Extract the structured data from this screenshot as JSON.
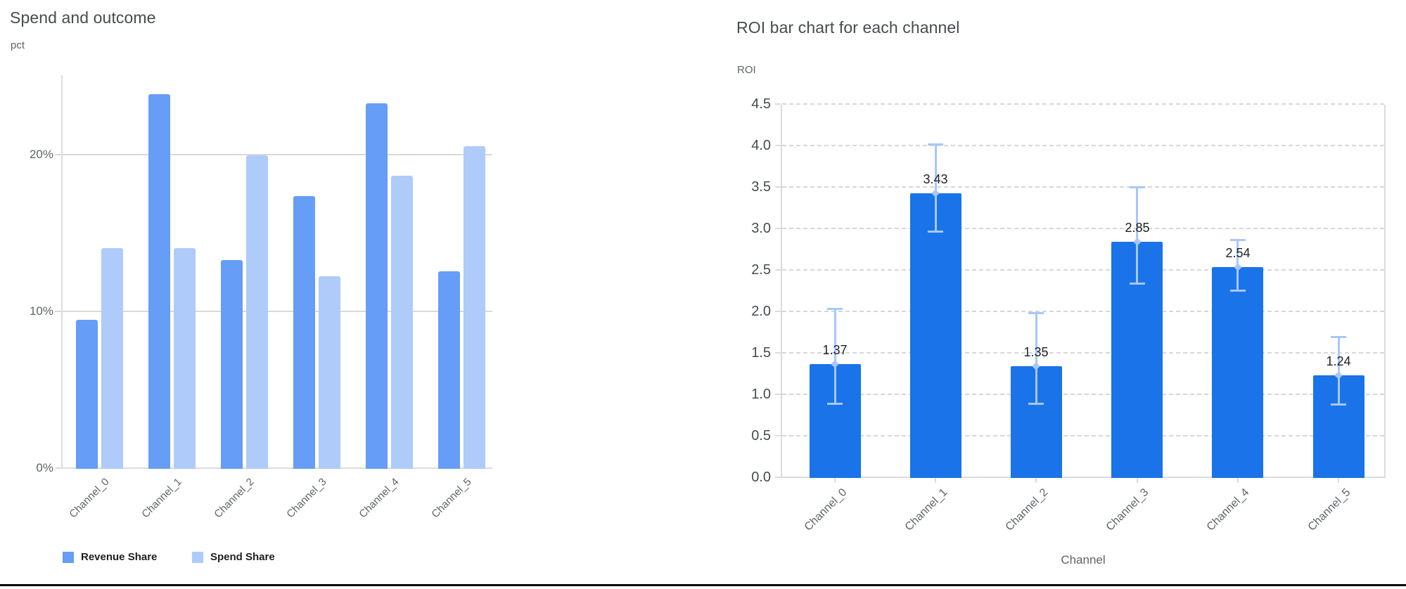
{
  "chart_data": [
    {
      "type": "bar",
      "variant": "grouped",
      "title": "Spend and outcome",
      "ylabel": "pct",
      "xlabel": "",
      "categories": [
        "Channel_0",
        "Channel_1",
        "Channel_2",
        "Channel_3",
        "Channel_4",
        "Channel_5"
      ],
      "series": [
        {
          "name": "Revenue Share",
          "color": "#669df6",
          "values": [
            9.5,
            23.9,
            13.3,
            17.4,
            23.3,
            12.6
          ]
        },
        {
          "name": "Spend Share",
          "color": "#aecbfa",
          "values": [
            14.1,
            14.1,
            20.0,
            12.3,
            18.7,
            20.6
          ]
        }
      ],
      "y_ticks": [
        {
          "label": "0%",
          "value": 0
        },
        {
          "label": "10%",
          "value": 10
        },
        {
          "label": "20%",
          "value": 20
        }
      ],
      "ylim": [
        0,
        25.1
      ],
      "grid": "solid",
      "legend_position": "bottom"
    },
    {
      "type": "bar",
      "variant": "single-with-error-bars",
      "title": "ROI bar chart for each channel",
      "ylabel": "ROI",
      "xlabel": "Channel",
      "categories": [
        "Channel_0",
        "Channel_1",
        "Channel_2",
        "Channel_3",
        "Channel_4",
        "Channel_5"
      ],
      "series": [
        {
          "name": "ROI",
          "color": "#1a73e8",
          "values": [
            1.37,
            3.43,
            1.35,
            2.85,
            2.54,
            1.24
          ]
        }
      ],
      "data_labels": [
        "1.37",
        "3.43",
        "1.35",
        "2.85",
        "2.54",
        "1.24"
      ],
      "error_bars": {
        "color": "#a8c7fa",
        "low": [
          0.88,
          2.96,
          0.88,
          2.33,
          2.25,
          0.87
        ],
        "high": [
          2.05,
          4.03,
          2.0,
          3.52,
          2.88,
          1.71
        ]
      },
      "y_ticks": [
        {
          "label": "0.0",
          "value": 0.0
        },
        {
          "label": "0.5",
          "value": 0.5
        },
        {
          "label": "1.0",
          "value": 1.0
        },
        {
          "label": "1.5",
          "value": 1.5
        },
        {
          "label": "2.0",
          "value": 2.0
        },
        {
          "label": "2.5",
          "value": 2.5
        },
        {
          "label": "3.0",
          "value": 3.0
        },
        {
          "label": "3.5",
          "value": 3.5
        },
        {
          "label": "4.0",
          "value": 4.0
        },
        {
          "label": "4.5",
          "value": 4.5
        }
      ],
      "ylim": [
        0,
        4.5
      ],
      "grid": "dashed",
      "legend_position": "none"
    }
  ]
}
